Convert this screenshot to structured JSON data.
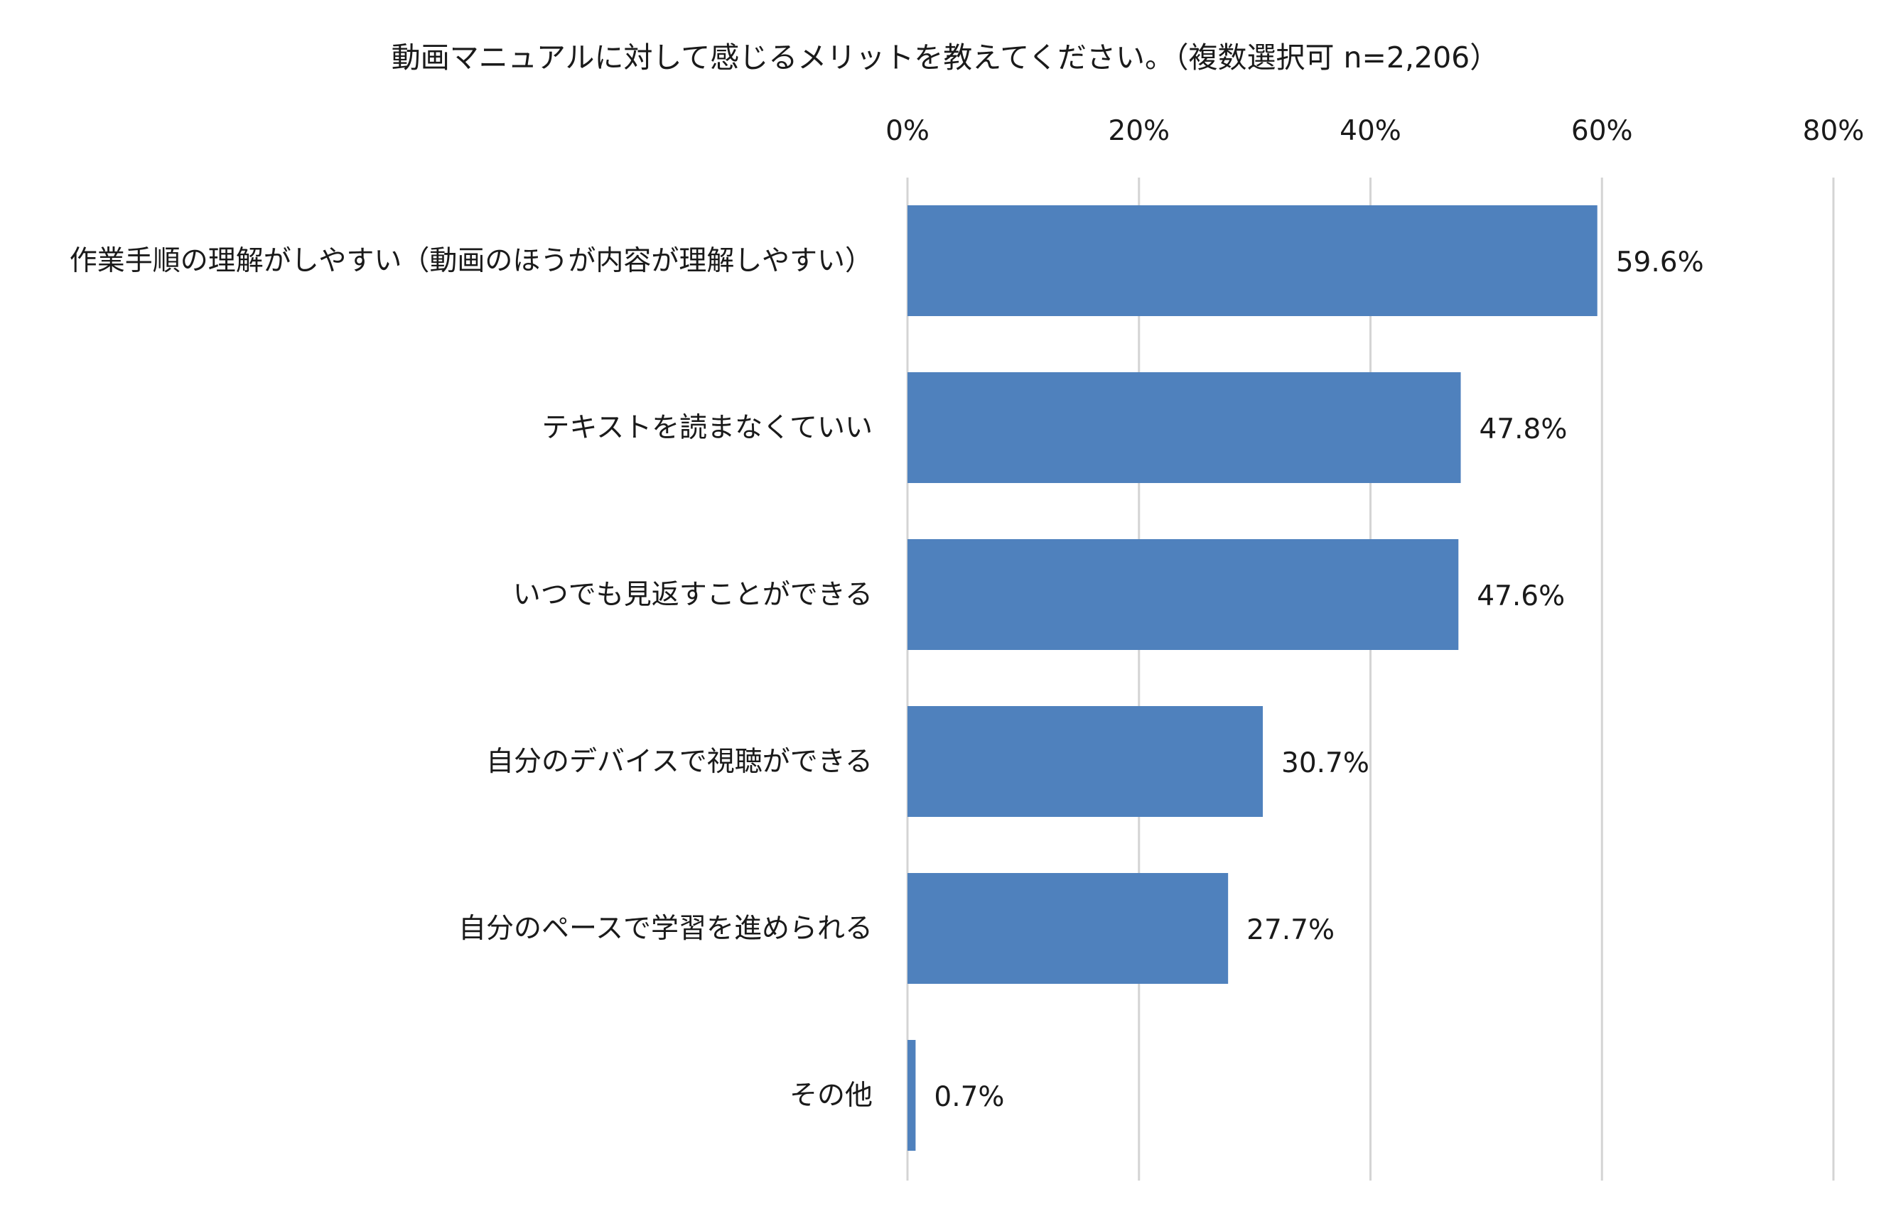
{
  "chart_data": {
    "type": "bar",
    "orientation": "horizontal",
    "title": "動画マニュアルに対して感じるメリットを教えてください。（複数選択可 n=2,206）",
    "categories": [
      "作業手順の理解がしやすい（動画のほうが内容が理解しやすい）",
      "テキストを読まなくていい",
      "いつでも見返すことができる",
      "自分のデバイスで視聴ができる",
      "自分のペースで学習を進められる",
      "その他"
    ],
    "values": [
      59.6,
      47.8,
      47.6,
      30.7,
      27.7,
      0.7
    ],
    "value_labels": [
      "59.6%",
      "47.8%",
      "47.6%",
      "30.7%",
      "27.7%",
      "0.7%"
    ],
    "xlim": [
      0,
      80
    ],
    "x_ticks": [
      0,
      20,
      40,
      60,
      80
    ],
    "x_tick_labels": [
      "0%",
      "20%",
      "40%",
      "60%",
      "80%"
    ],
    "x_axis_position": "top",
    "grid": true,
    "legend": "none",
    "bar_color": "#4f81bd"
  }
}
